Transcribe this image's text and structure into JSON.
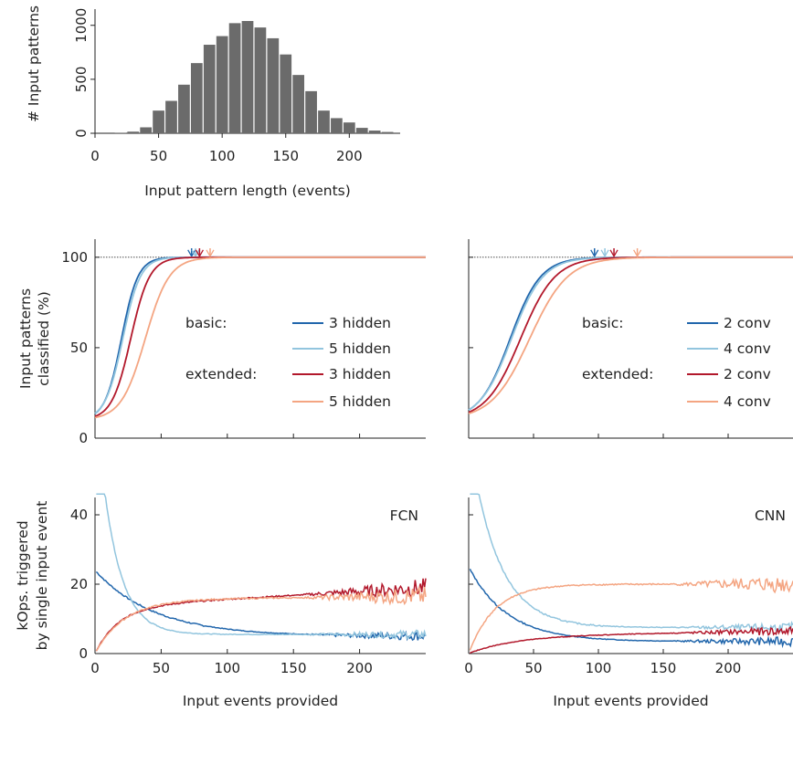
{
  "chart_data": [
    {
      "id": "hist",
      "type": "bar",
      "xlabel": "Input pattern length (events)",
      "ylabel": "# Input patterns",
      "xlim": [
        0,
        240
      ],
      "ylim": [
        0,
        1150
      ],
      "xticks": [
        0,
        50,
        100,
        150,
        200
      ],
      "yticks": [
        0,
        500,
        1000
      ],
      "bin_centers": [
        20,
        30,
        40,
        50,
        60,
        70,
        80,
        90,
        100,
        110,
        120,
        130,
        140,
        150,
        160,
        170,
        180,
        190,
        200,
        210,
        220,
        230
      ],
      "values": [
        5,
        15,
        55,
        210,
        300,
        450,
        650,
        820,
        900,
        1020,
        1040,
        980,
        880,
        730,
        540,
        390,
        210,
        140,
        100,
        50,
        25,
        12
      ],
      "color": "#6b6b6b"
    },
    {
      "id": "fcn-class",
      "type": "line",
      "ylabel": "Input patterns classified (%)",
      "xlim": [
        0,
        250
      ],
      "ylim": [
        0,
        110
      ],
      "yticks": [
        0,
        50,
        100
      ],
      "reference_line_y": 100,
      "legend": {
        "group_basic": "basic:",
        "group_extended": "extended:",
        "entries": [
          "3 hidden",
          "5 hidden",
          "3 hidden",
          "5 hidden"
        ]
      },
      "series": [
        {
          "name": "3 hidden",
          "group": "basic",
          "color": "#2166ac",
          "params": {
            "mid": 20,
            "k": 0.16
          },
          "arrow_x": 73
        },
        {
          "name": "5 hidden",
          "group": "basic",
          "color": "#92c5de",
          "params": {
            "mid": 21,
            "k": 0.15
          },
          "arrow_x": 76
        },
        {
          "name": "3 hidden",
          "group": "extended",
          "color": "#b2182b",
          "params": {
            "mid": 27,
            "k": 0.14
          },
          "arrow_x": 79
        },
        {
          "name": "5 hidden",
          "group": "extended",
          "color": "#f4a582",
          "params": {
            "mid": 38,
            "k": 0.11
          },
          "arrow_x": 87
        }
      ]
    },
    {
      "id": "cnn-class",
      "type": "line",
      "xlim": [
        0,
        250
      ],
      "ylim": [
        0,
        110
      ],
      "reference_line_y": 100,
      "legend": {
        "group_basic": "basic:",
        "group_extended": "extended:",
        "entries": [
          "2 conv",
          "4 conv",
          "2 conv",
          "4 conv"
        ]
      },
      "series": [
        {
          "name": "2 conv",
          "group": "basic",
          "color": "#2166ac",
          "params": {
            "mid": 32,
            "k": 0.085
          },
          "arrow_x": 97
        },
        {
          "name": "4 conv",
          "group": "basic",
          "color": "#92c5de",
          "params": {
            "mid": 33,
            "k": 0.082
          },
          "arrow_x": 105
        },
        {
          "name": "2 conv",
          "group": "extended",
          "color": "#b2182b",
          "params": {
            "mid": 40,
            "k": 0.075
          },
          "arrow_x": 112
        },
        {
          "name": "4 conv",
          "group": "extended",
          "color": "#f4a582",
          "params": {
            "mid": 47,
            "k": 0.068
          },
          "arrow_x": 130
        }
      ]
    },
    {
      "id": "fcn-ops",
      "type": "line",
      "tag": "FCN",
      "ylabel": "kOps. triggered by single input event",
      "xlabel": "Input events provided",
      "xlim": [
        0,
        250
      ],
      "ylim": [
        0,
        45
      ],
      "xticks": [
        0,
        50,
        100,
        150,
        200
      ],
      "yticks": [
        0,
        20,
        40
      ],
      "series": [
        {
          "name": "3 hidden",
          "group": "basic",
          "color": "#2166ac",
          "params": {
            "shape": "decay",
            "a": 5,
            "b": 19,
            "tau": 45,
            "start": 22
          }
        },
        {
          "name": "5 hidden",
          "group": "basic",
          "color": "#92c5de",
          "params": {
            "shape": "decay",
            "a": 5.5,
            "b": 70,
            "tau": 14
          }
        },
        {
          "name": "3 hidden",
          "group": "extended",
          "color": "#b2182b",
          "params": {
            "shape": "rise",
            "a": 13.5,
            "c": 0.022,
            "tau": 18
          }
        },
        {
          "name": "5 hidden",
          "group": "extended",
          "color": "#f4a582",
          "params": {
            "shape": "rise",
            "a": 15.5,
            "c": 0.004,
            "tau": 22
          }
        }
      ]
    },
    {
      "id": "cnn-ops",
      "type": "line",
      "tag": "CNN",
      "xlabel": "Input events provided",
      "xlim": [
        0,
        250
      ],
      "ylim": [
        0,
        45
      ],
      "xticks": [
        0,
        50,
        100,
        150,
        200
      ],
      "series": [
        {
          "name": "2 conv",
          "group": "basic",
          "color": "#2166ac",
          "params": {
            "shape": "decay",
            "a": 3.5,
            "b": 21.5,
            "tau": 30
          }
        },
        {
          "name": "4 conv",
          "group": "basic",
          "color": "#92c5de",
          "params": {
            "shape": "decay",
            "a": 7.5,
            "b": 55,
            "tau": 22
          }
        },
        {
          "name": "2 conv",
          "group": "extended",
          "color": "#b2182b",
          "params": {
            "shape": "rise",
            "a": 5,
            "c": 0.006,
            "tau": 35
          }
        },
        {
          "name": "4 conv",
          "group": "extended",
          "color": "#f4a582",
          "params": {
            "shape": "rise",
            "a": 20,
            "c": 0,
            "tau": 20
          }
        }
      ]
    }
  ]
}
